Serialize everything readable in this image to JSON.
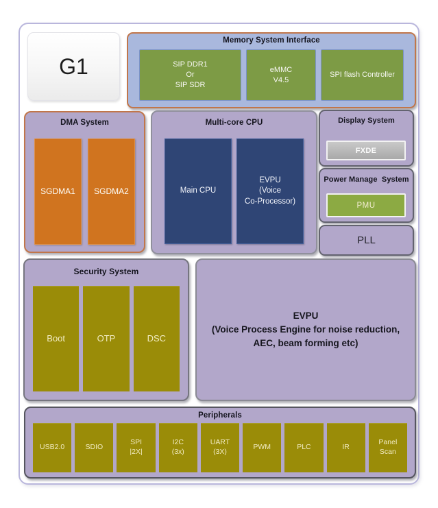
{
  "colors": {
    "container_purple": "#b2a7ca",
    "memory_blue": "#a9b8dd",
    "orange_border": "#c1764a",
    "green_block": "#7d9b45",
    "orange_block": "#d0741f",
    "dark_blue_block": "#2f4575",
    "olive_block": "#9a8c08",
    "gray_block": "#b5b5b5",
    "pmu_green": "#8caa43",
    "chip_outline_lavender": "#b9b6dc"
  },
  "chip": {
    "label": "G1"
  },
  "memory": {
    "title": "Memory System Interface",
    "blocks": [
      "SIP DDR1\nOr\nSIP SDR",
      "eMMC\nV4.5",
      "SPI flash Controller"
    ]
  },
  "dma": {
    "title": "DMA System",
    "blocks": [
      "SGDMA1",
      "SGDMA2"
    ]
  },
  "cpu": {
    "title": "Multi-core CPU",
    "blocks": [
      "Main CPU",
      "EVPU\n(Voice\nCo-Processor)"
    ]
  },
  "display": {
    "title": "Display System",
    "block": "FXDE"
  },
  "power": {
    "title": "Power Manage  System",
    "block": "PMU"
  },
  "pll": {
    "label": "PLL"
  },
  "security": {
    "title": "Security System",
    "blocks": [
      "Boot",
      "OTP",
      "DSC"
    ]
  },
  "evpu": {
    "label": "EVPU\n(Voice Process Engine for noise reduction,\nAEC, beam forming etc)"
  },
  "peripherals": {
    "title": "Peripherals",
    "blocks": [
      "USB2.0",
      "SDIO",
      "SPI\n|2X|",
      "I2C\n(3x)",
      "UART\n(3X)",
      "PWM",
      "PLC",
      "IR",
      "Panel\nScan"
    ]
  }
}
